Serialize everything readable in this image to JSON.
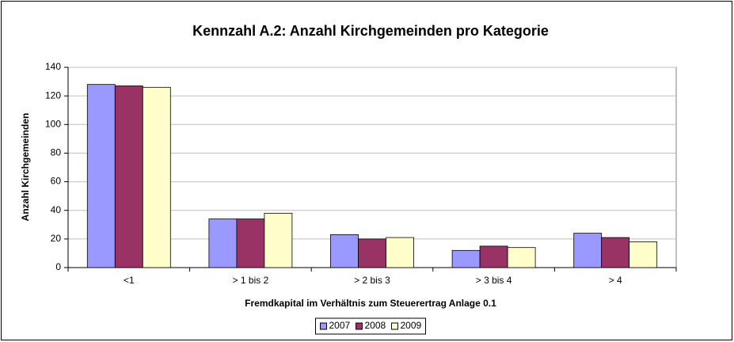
{
  "chart_data": {
    "type": "bar",
    "title": "Kennzahl A.2: Anzahl Kirchgemeinden pro Kategorie",
    "x_label": "Fremdkapital im Verhältnis zum Steuerertrag Anlage 0.1",
    "y_label": "Anzahl Kirchgemeinden",
    "categories": [
      "<1",
      "> 1 bis 2",
      "> 2 bis 3",
      "> 3 bis 4",
      "> 4"
    ],
    "series": [
      {
        "name": "2007",
        "color": "#9999ff",
        "values": [
          128,
          34,
          23,
          12,
          24
        ]
      },
      {
        "name": "2008",
        "color": "#993366",
        "values": [
          127,
          34,
          20,
          15,
          21
        ]
      },
      {
        "name": "2009",
        "color": "#ffffcc",
        "values": [
          126,
          38,
          21,
          14,
          18
        ]
      }
    ],
    "ylim": [
      0,
      140
    ],
    "yticks": [
      0,
      20,
      40,
      60,
      80,
      100,
      120,
      140
    ],
    "grid": true,
    "legend": "bottom"
  }
}
